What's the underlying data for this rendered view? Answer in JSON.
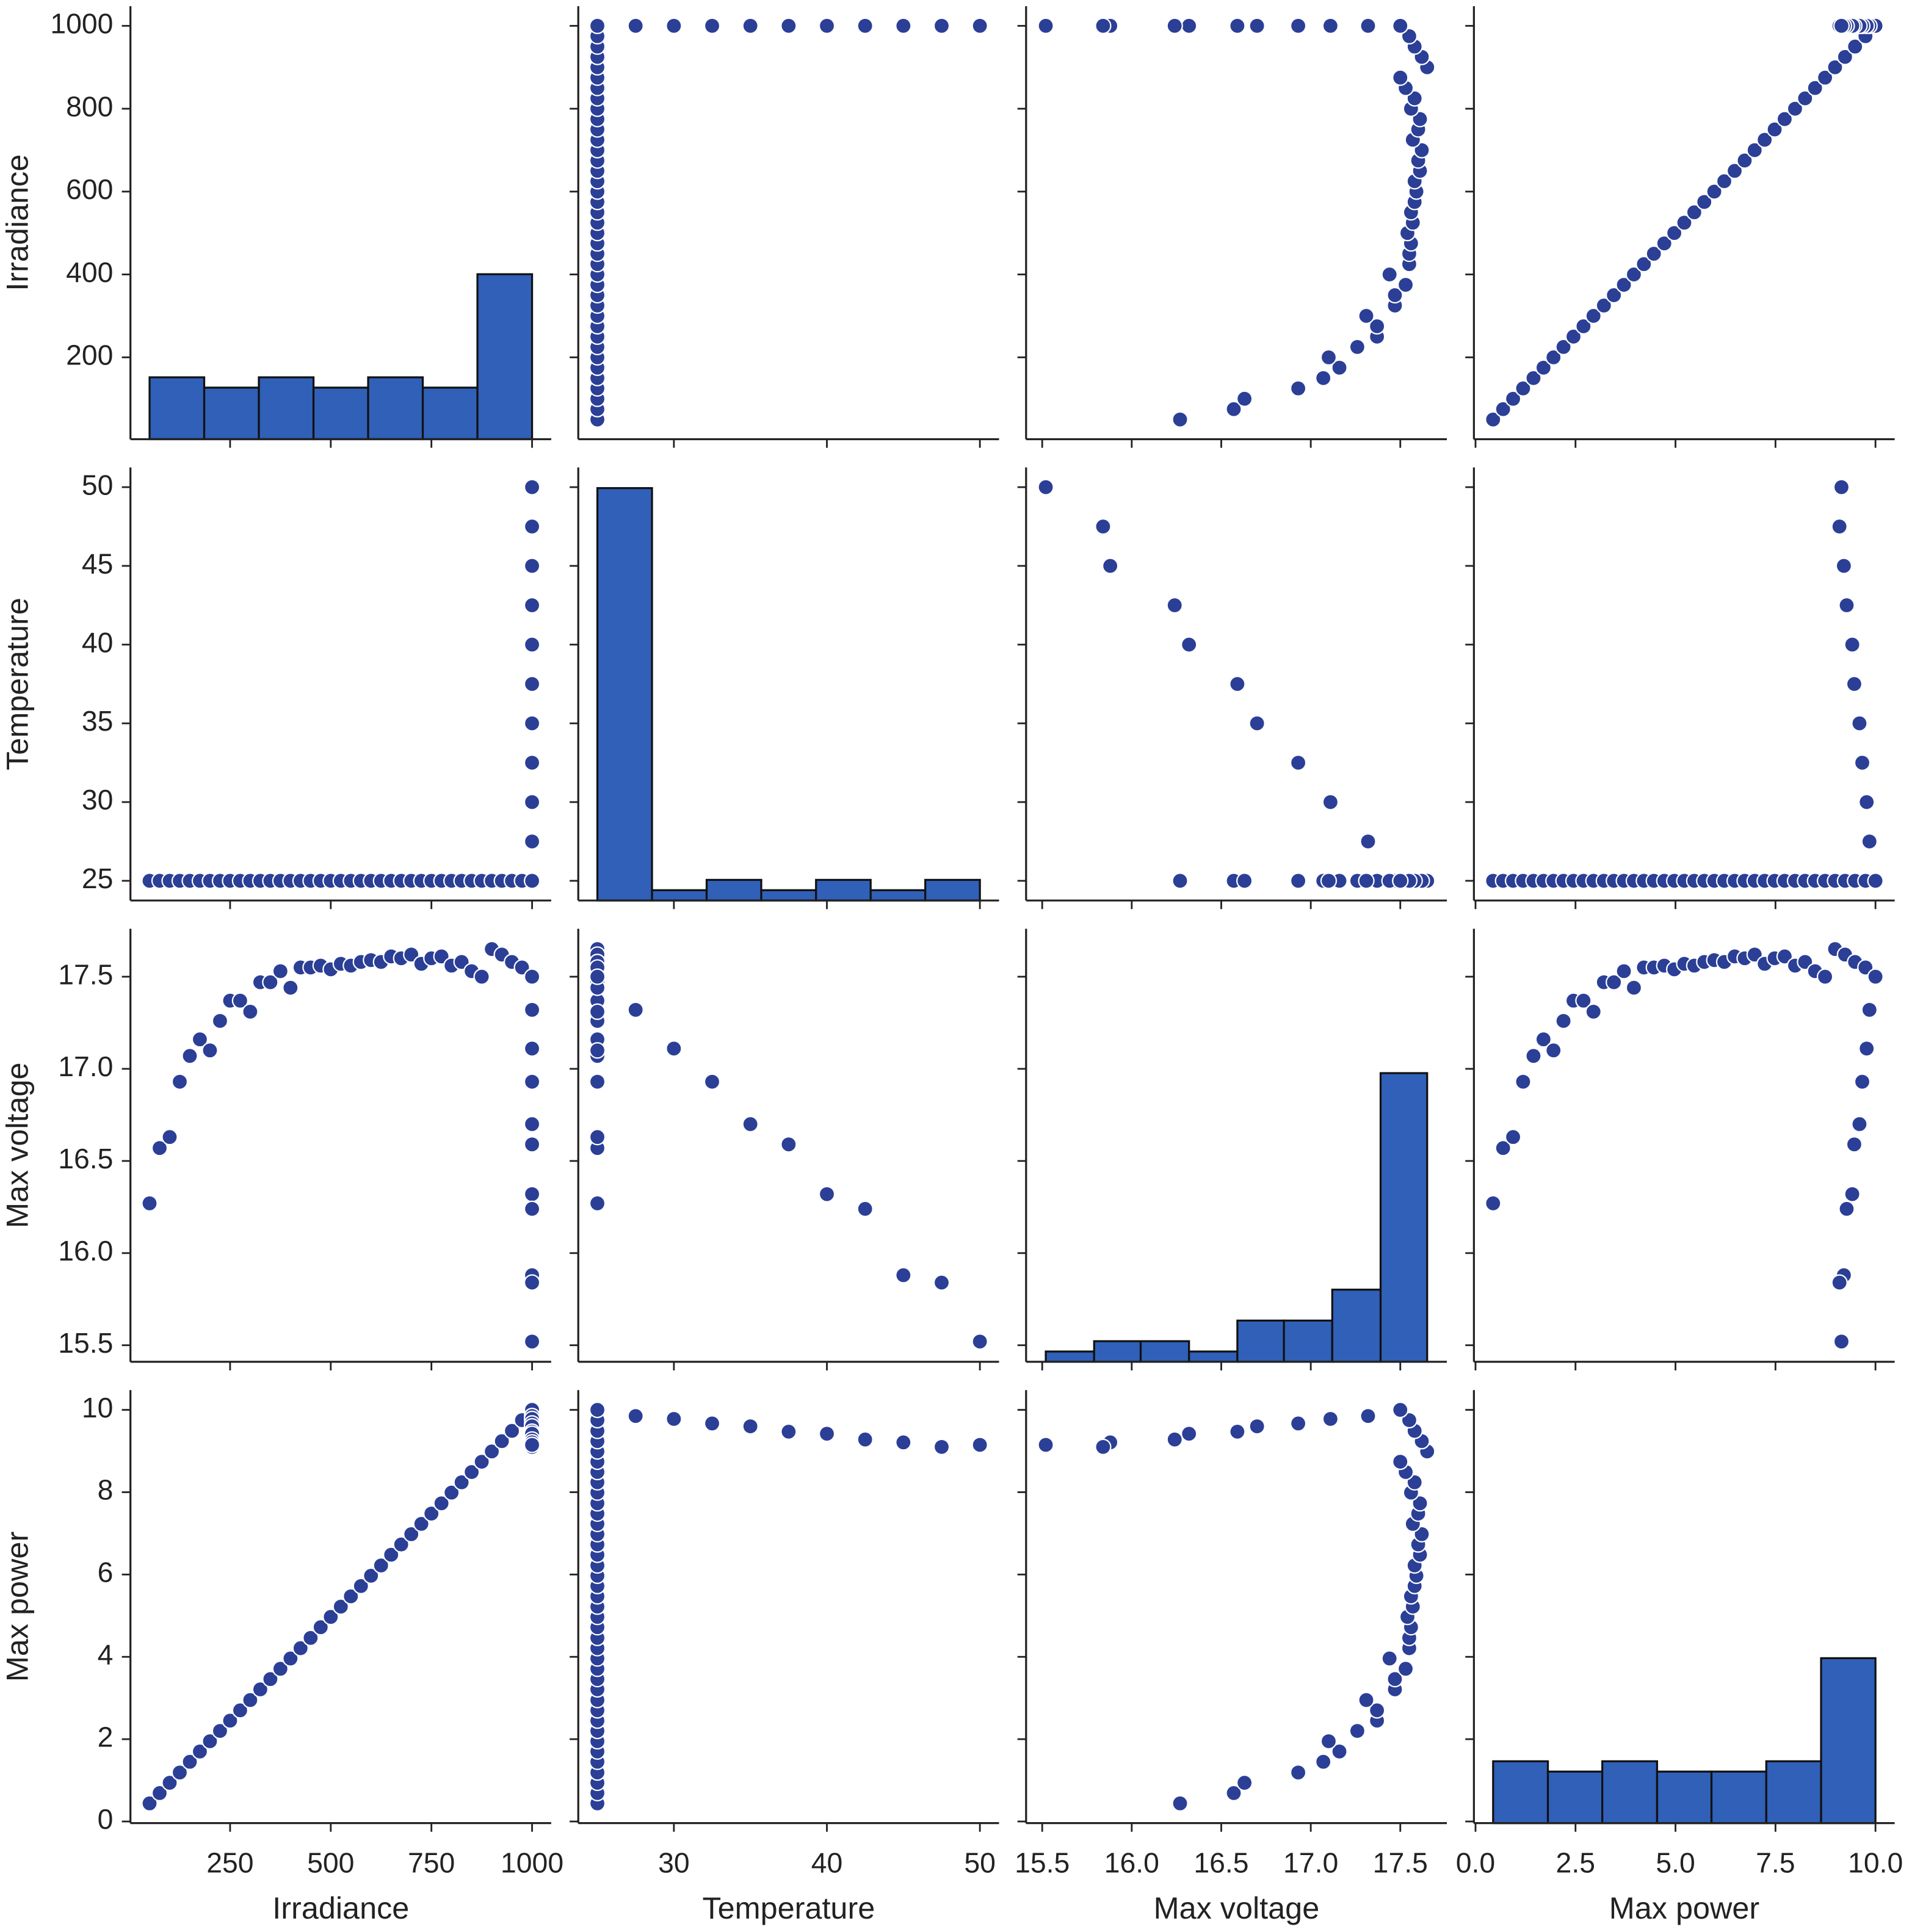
{
  "chart_data": {
    "type": "pairplot",
    "hist_color": "#3060b8",
    "point_color": "#2b3f96",
    "hist_ylim": [
      0,
      42
    ],
    "variables": [
      {
        "name": "Irradiance",
        "values": [
          50,
          75,
          100,
          125,
          150,
          175,
          200,
          225,
          250,
          275,
          300,
          325,
          350,
          375,
          400,
          425,
          450,
          475,
          500,
          525,
          550,
          575,
          600,
          625,
          650,
          675,
          700,
          725,
          750,
          775,
          800,
          825,
          850,
          875,
          900,
          925,
          950,
          975,
          1000,
          1000,
          1000,
          1000,
          1000,
          1000,
          1000,
          1000,
          1000,
          1000,
          1000
        ],
        "lim": [
          2.5,
          1047.5
        ],
        "xticks": [
          250,
          500,
          750,
          1000
        ],
        "yticks": [
          200,
          400,
          600,
          800,
          1000
        ],
        "hist": {
          "bins": [
            50,
            185.71,
            321.43,
            457.14,
            592.86,
            728.57,
            864.29,
            1000
          ],
          "counts": [
            6,
            5,
            6,
            5,
            6,
            5,
            16
          ]
        }
      },
      {
        "name": "Temperature",
        "values": [
          25,
          25,
          25,
          25,
          25,
          25,
          25,
          25,
          25,
          25,
          25,
          25,
          25,
          25,
          25,
          25,
          25,
          25,
          25,
          25,
          25,
          25,
          25,
          25,
          25,
          25,
          25,
          25,
          25,
          25,
          25,
          25,
          25,
          25,
          25,
          25,
          25,
          25,
          25,
          27.5,
          30,
          32.5,
          35,
          37.5,
          40,
          42.5,
          45,
          47.5,
          50
        ],
        "lim": [
          23.75,
          51.25
        ],
        "xticks": [
          30,
          40,
          50
        ],
        "yticks": [
          25,
          30,
          35,
          40,
          45,
          50
        ],
        "hist": {
          "bins": [
            25,
            28.57,
            32.14,
            35.71,
            39.29,
            42.86,
            46.43,
            50
          ],
          "counts": [
            40,
            1,
            2,
            1,
            2,
            1,
            2
          ]
        }
      },
      {
        "name": "Max voltage",
        "values": [
          16.27,
          16.57,
          16.63,
          16.93,
          17.07,
          17.16,
          17.1,
          17.26,
          17.37,
          17.37,
          17.31,
          17.47,
          17.47,
          17.53,
          17.44,
          17.55,
          17.55,
          17.56,
          17.54,
          17.57,
          17.56,
          17.58,
          17.59,
          17.58,
          17.61,
          17.6,
          17.62,
          17.57,
          17.6,
          17.61,
          17.56,
          17.58,
          17.53,
          17.5,
          17.65,
          17.62,
          17.58,
          17.55,
          17.5,
          17.32,
          17.11,
          16.93,
          16.7,
          16.59,
          16.32,
          16.24,
          15.88,
          15.84,
          15.52
        ],
        "lim": [
          15.41,
          17.76
        ],
        "xticks": [
          15.5,
          {
            "value": 16,
            "label": "16.0"
          },
          16.5,
          {
            "value": 17,
            "label": "17.0"
          },
          17.5
        ],
        "yticks": [
          15.5,
          {
            "value": 16,
            "label": "16.0"
          },
          16.5,
          {
            "value": 17,
            "label": "17.0"
          },
          17.5
        ],
        "hist": {
          "bins": [
            15.52,
            15.79,
            16.05,
            16.32,
            16.59,
            16.85,
            17.12,
            17.39,
            17.65
          ],
          "counts": [
            1,
            2,
            2,
            1,
            4,
            4,
            7,
            28
          ]
        }
      },
      {
        "name": "Max power",
        "values": [
          0.44,
          0.69,
          0.94,
          1.19,
          1.45,
          1.7,
          1.95,
          2.2,
          2.45,
          2.7,
          2.95,
          3.21,
          3.46,
          3.71,
          3.96,
          4.21,
          4.46,
          4.72,
          4.97,
          5.22,
          5.47,
          5.72,
          5.97,
          6.22,
          6.48,
          6.73,
          6.98,
          7.23,
          7.48,
          7.73,
          7.99,
          8.24,
          8.49,
          8.74,
          8.99,
          9.24,
          9.49,
          9.75,
          10.0,
          9.85,
          9.78,
          9.67,
          9.6,
          9.47,
          9.42,
          9.28,
          9.21,
          9.1,
          9.15
        ],
        "lim": [
          -0.04,
          10.48
        ],
        "xticks": [
          {
            "value": 0,
            "label": "0.0"
          },
          2.5,
          {
            "value": 5,
            "label": "5.0"
          },
          7.5,
          {
            "value": 10,
            "label": "10.0"
          }
        ],
        "yticks": [
          0,
          2,
          4,
          6,
          8,
          10
        ],
        "hist": {
          "bins": [
            0.44,
            1.81,
            3.17,
            4.54,
            5.9,
            7.27,
            8.64,
            10.0
          ],
          "counts": [
            6,
            5,
            6,
            5,
            5,
            6,
            16
          ]
        }
      }
    ]
  }
}
